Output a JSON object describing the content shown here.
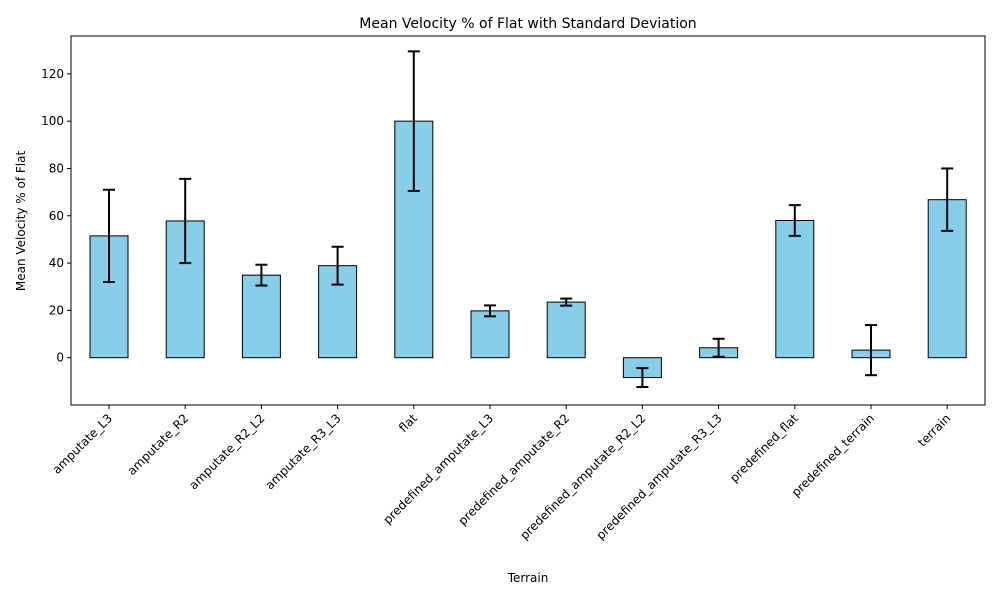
{
  "chart_data": {
    "type": "bar",
    "title": "Mean Velocity % of Flat with Standard Deviation",
    "xlabel": "Terrain",
    "ylabel": "Mean Velocity % of Flat",
    "categories": [
      "amputate_L3",
      "amputate_R2",
      "amputate_R2_L2",
      "amputate_R3_L3",
      "flat",
      "predefined_amputate_L3",
      "predefined_amputate_R2",
      "predefined_amputate_R2_L2",
      "predefined_amputate_R3_L3",
      "predefined_flat",
      "predefined_terrain",
      "terrain"
    ],
    "values": [
      51.5,
      57.8,
      34.9,
      38.9,
      100.0,
      19.8,
      23.5,
      -8.4,
      4.2,
      58.0,
      3.2,
      66.8
    ],
    "std": [
      19.5,
      17.8,
      4.4,
      8.0,
      29.5,
      2.3,
      1.5,
      4.0,
      3.8,
      6.5,
      10.6,
      13.2
    ],
    "yticks": [
      0,
      20,
      40,
      60,
      80,
      100,
      120
    ],
    "ylim": [
      -20,
      136
    ],
    "bar_color": "#87CEEB",
    "edge_color": "#000000",
    "grid": false,
    "legend": "none"
  }
}
